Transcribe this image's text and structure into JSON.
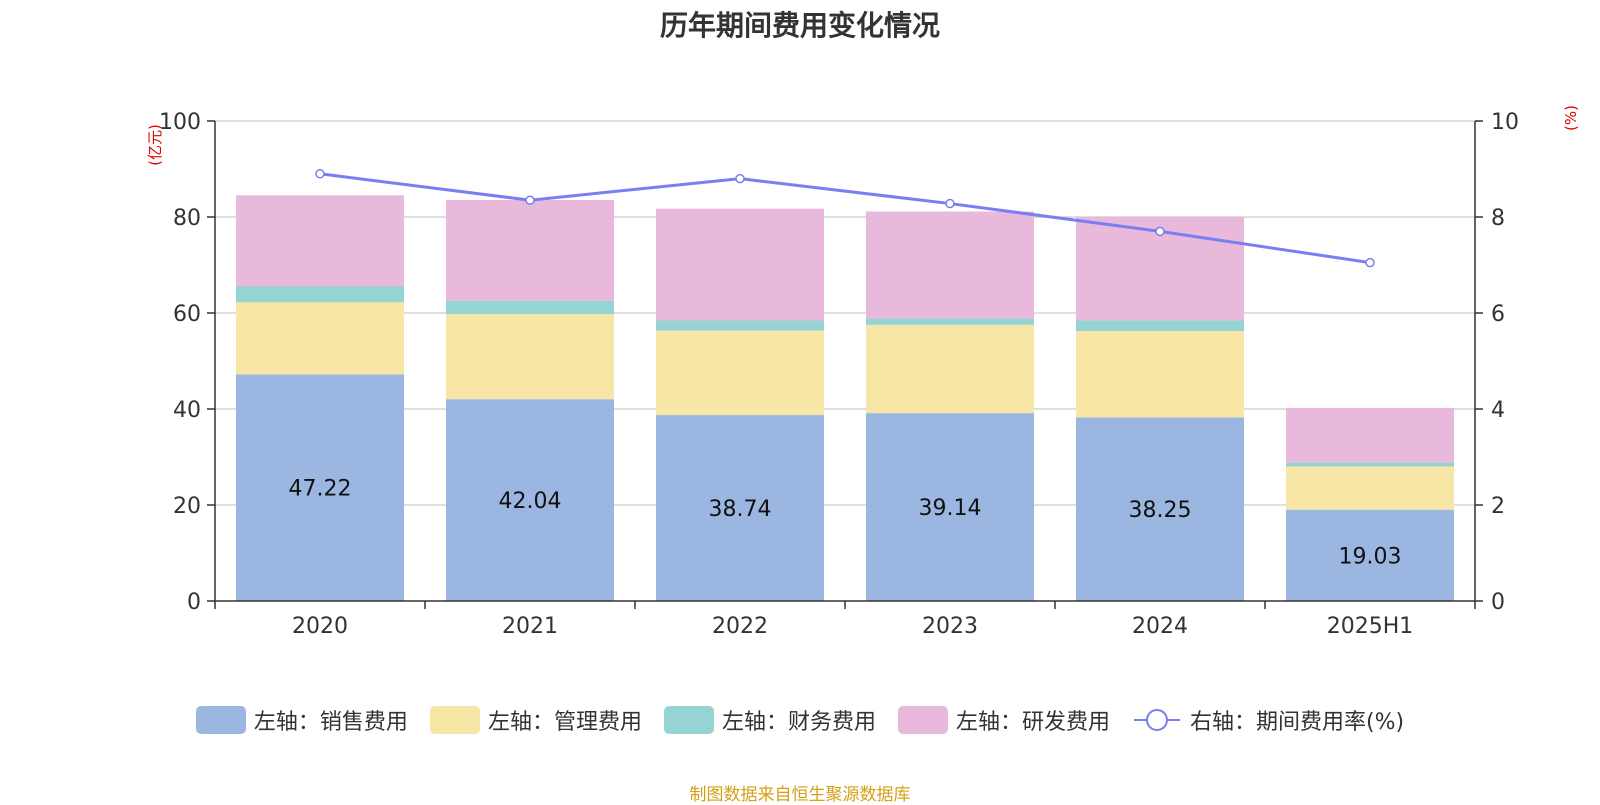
{
  "chart_data": {
    "type": "bar",
    "title": "历年期间费用变化情况",
    "categories": [
      "2020",
      "2021",
      "2022",
      "2023",
      "2024",
      "2025H1"
    ],
    "y_left": {
      "unit_label": "(亿元)",
      "ylim": [
        0,
        100
      ],
      "ticks": [
        0,
        20,
        40,
        60,
        80,
        100
      ]
    },
    "y_right": {
      "unit_label": "(%)",
      "ylim": [
        0,
        10
      ],
      "ticks": [
        0,
        2,
        4,
        6,
        8,
        10
      ]
    },
    "series": [
      {
        "name": "左轴：销售费用",
        "axis": "left",
        "type": "bar",
        "stack": "total",
        "color": "#9bb7e1",
        "values": [
          47.22,
          42.04,
          38.74,
          39.14,
          38.25,
          19.03
        ],
        "show_labels": true
      },
      {
        "name": "左轴：管理费用",
        "axis": "left",
        "type": "bar",
        "stack": "total",
        "color": "#f8e6a7",
        "values": [
          15.0,
          17.7,
          17.6,
          18.4,
          18.0,
          9.0
        ],
        "show_labels": false
      },
      {
        "name": "左轴：财务费用",
        "axis": "left",
        "type": "bar",
        "stack": "total",
        "color": "#96d4d3",
        "values": [
          3.3,
          2.8,
          2.1,
          1.3,
          2.2,
          0.8
        ],
        "show_labels": false
      },
      {
        "name": "左轴：研发费用",
        "axis": "left",
        "type": "bar",
        "stack": "total",
        "color": "#e8b9da",
        "values": [
          19.0,
          21.0,
          23.3,
          22.3,
          21.6,
          11.4
        ],
        "show_labels": false
      },
      {
        "name": "右轴：期间费用率(%)",
        "axis": "right",
        "type": "line",
        "color": "#7a7ef0",
        "values": [
          8.9,
          8.35,
          8.8,
          8.28,
          7.7,
          7.05
        ]
      }
    ],
    "grid": true,
    "legend_position": "bottom"
  },
  "source_note": "制图数据来自恒生聚源数据库"
}
